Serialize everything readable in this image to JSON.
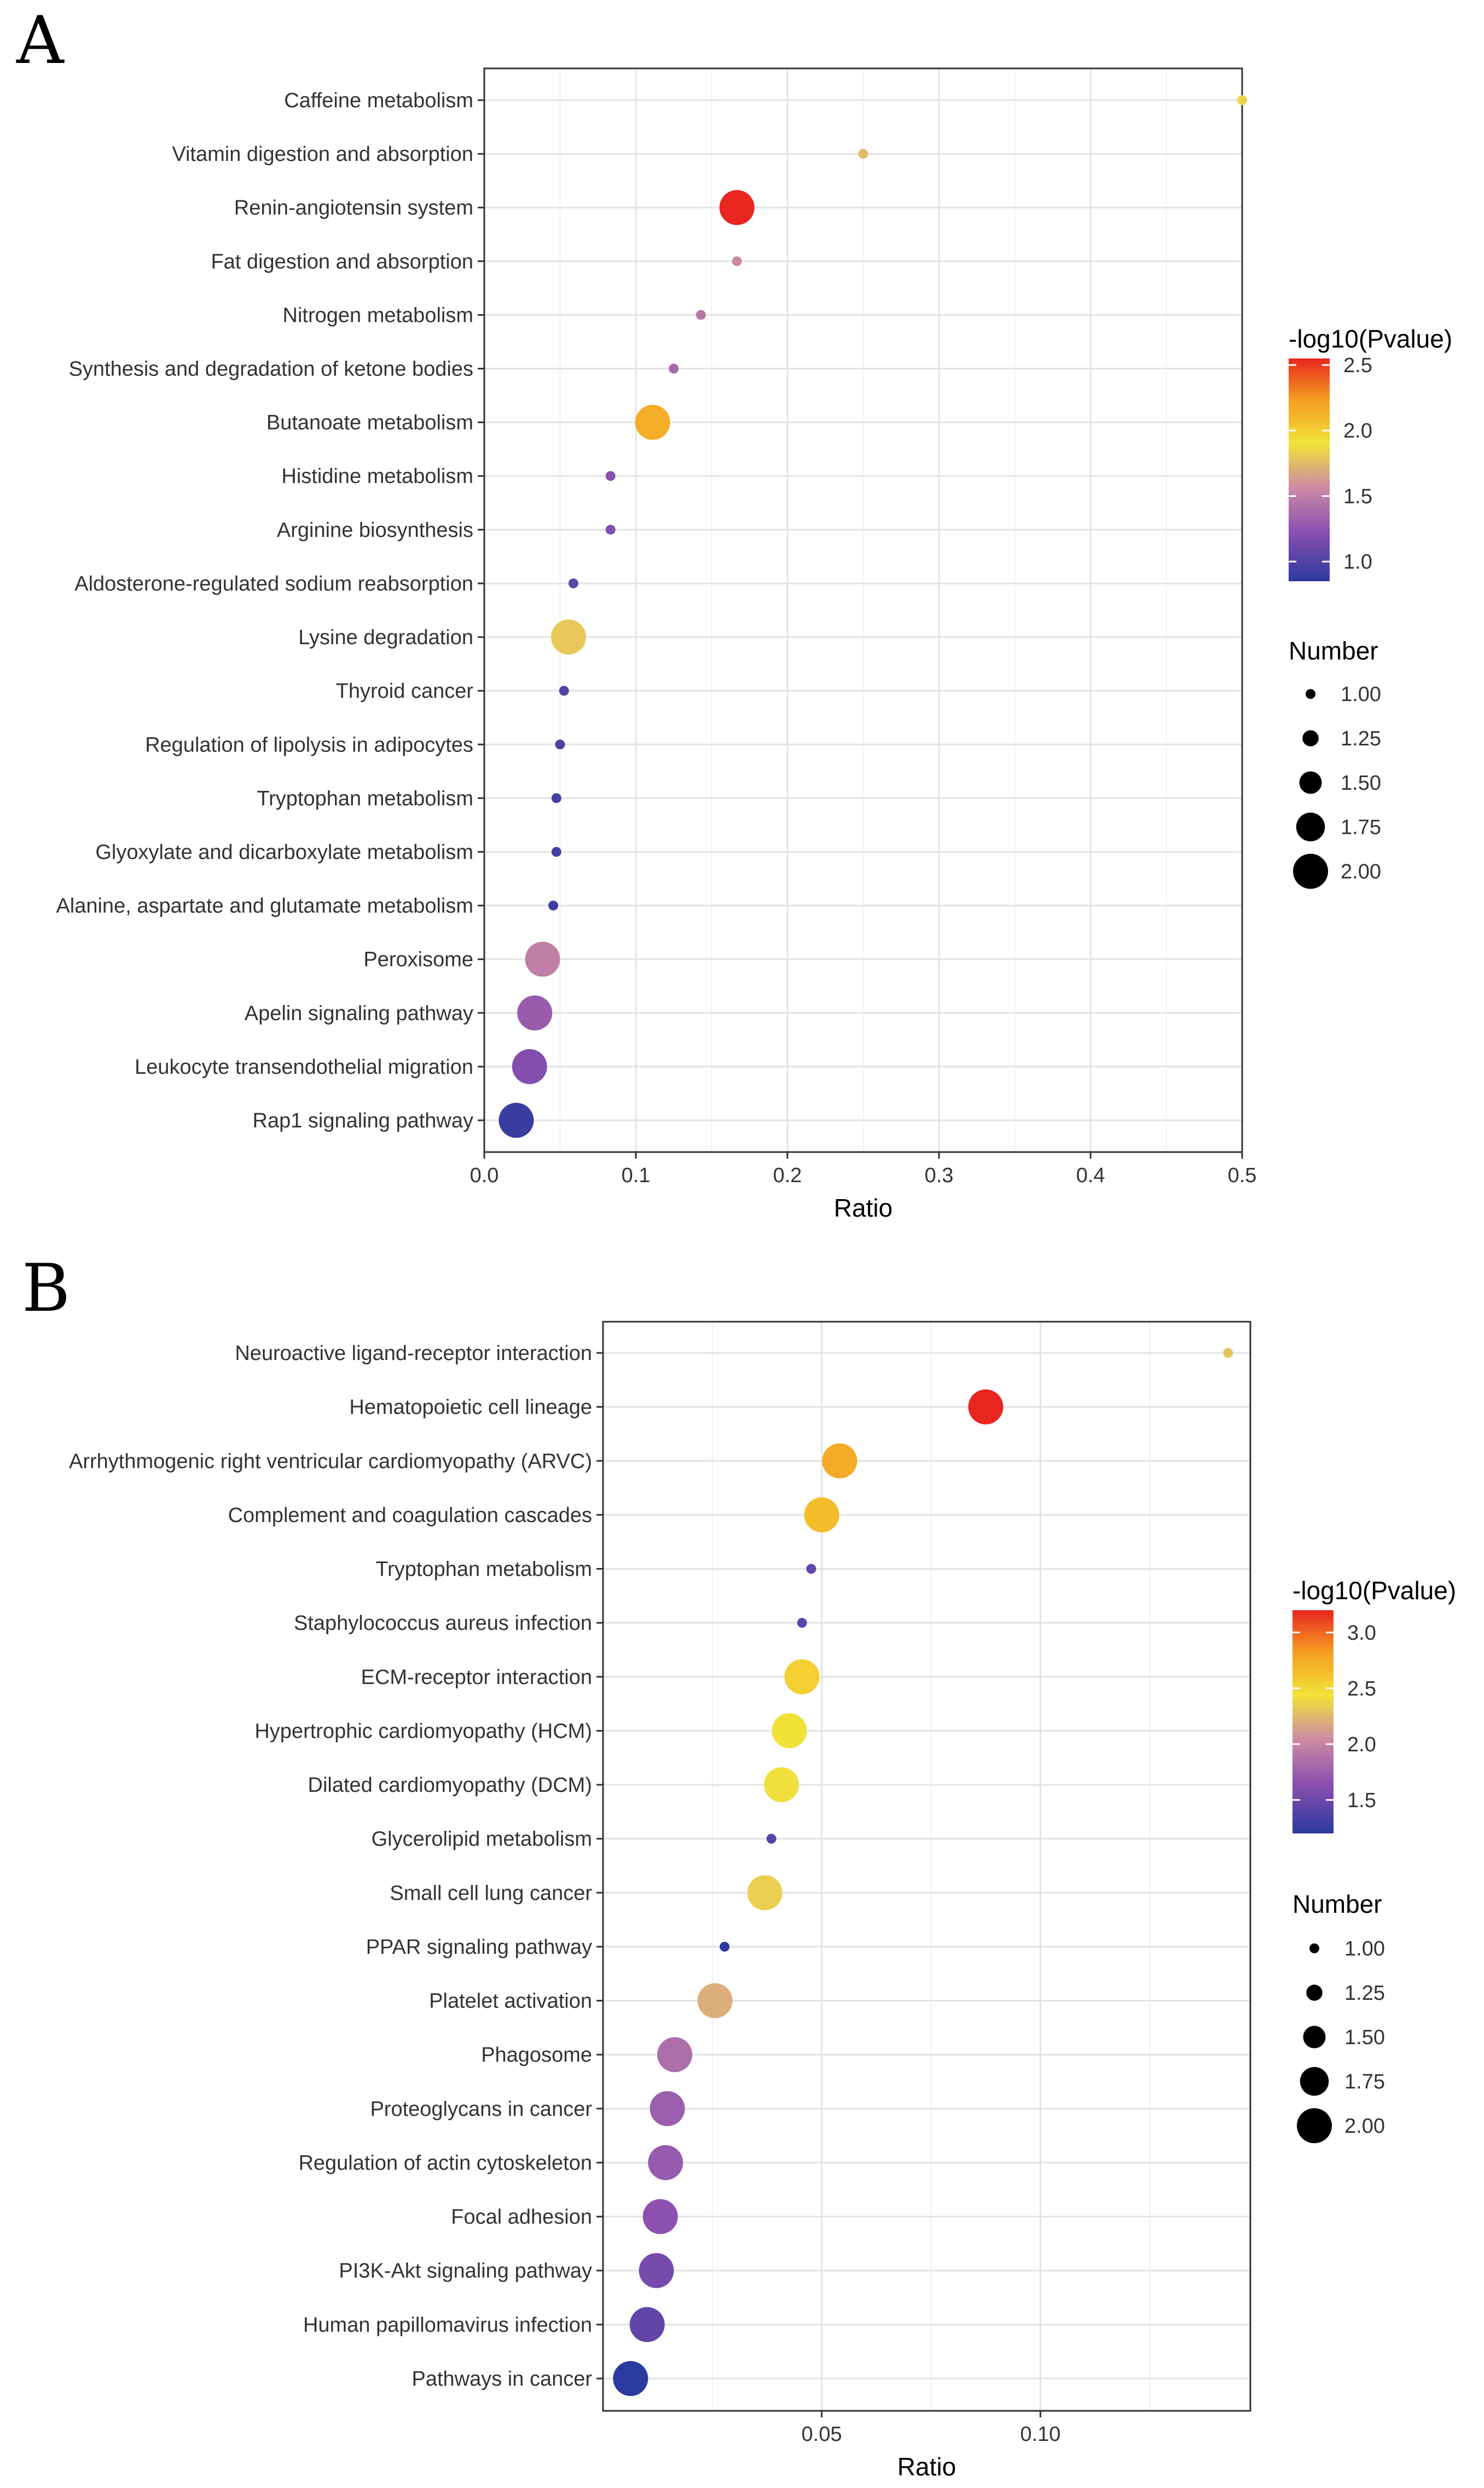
{
  "figure_labels": {
    "a": "A",
    "b": "B"
  },
  "chart_data": [
    {
      "type": "scatter",
      "panel": "A",
      "xlabel": "Ratio",
      "xlim": [
        0.0,
        0.5
      ],
      "xticks": [
        "0.0",
        "0.1",
        "0.2",
        "0.3",
        "0.4",
        "0.5"
      ],
      "color_legend": {
        "title": "-log10(Pvalue)",
        "range": [
          0.85,
          2.55
        ],
        "ticks": [
          "1.0",
          "1.5",
          "2.0",
          "2.5"
        ],
        "tick_values": [
          1.0,
          1.5,
          2.0,
          2.5
        ]
      },
      "size_legend": {
        "title": "Number",
        "labels": [
          "1.00",
          "1.25",
          "1.50",
          "1.75",
          "2.00"
        ],
        "values": [
          1.0,
          1.25,
          1.5,
          1.75,
          2.0
        ]
      },
      "points": [
        {
          "name": "Caffeine metabolism",
          "ratio": 0.5,
          "pvalue_log": 1.85,
          "number": 1
        },
        {
          "name": "Vitamin digestion and absorption",
          "ratio": 0.25,
          "pvalue_log": 1.75,
          "number": 1
        },
        {
          "name": "Renin-angiotensin system",
          "ratio": 0.1667,
          "pvalue_log": 2.55,
          "number": 2
        },
        {
          "name": "Fat digestion and absorption",
          "ratio": 0.1667,
          "pvalue_log": 1.55,
          "number": 1
        },
        {
          "name": "Nitrogen metabolism",
          "ratio": 0.1429,
          "pvalue_log": 1.45,
          "number": 1
        },
        {
          "name": "Synthesis and degradation of ketone bodies",
          "ratio": 0.125,
          "pvalue_log": 1.38,
          "number": 1
        },
        {
          "name": "Butanoate metabolism",
          "ratio": 0.1111,
          "pvalue_log": 2.15,
          "number": 2
        },
        {
          "name": "Histidine metabolism",
          "ratio": 0.0833,
          "pvalue_log": 1.22,
          "number": 1
        },
        {
          "name": "Arginine biosynthesis",
          "ratio": 0.0833,
          "pvalue_log": 1.2,
          "number": 1
        },
        {
          "name": "Aldosterone-regulated sodium reabsorption",
          "ratio": 0.0588,
          "pvalue_log": 1.05,
          "number": 1
        },
        {
          "name": "Lysine degradation",
          "ratio": 0.0556,
          "pvalue_log": 1.8,
          "number": 2
        },
        {
          "name": "Thyroid cancer",
          "ratio": 0.0526,
          "pvalue_log": 1.0,
          "number": 1
        },
        {
          "name": "Regulation of lipolysis in adipocytes",
          "ratio": 0.05,
          "pvalue_log": 0.98,
          "number": 1
        },
        {
          "name": "Tryptophan metabolism",
          "ratio": 0.0476,
          "pvalue_log": 0.96,
          "number": 1
        },
        {
          "name": "Glyoxylate and dicarboxylate metabolism",
          "ratio": 0.0476,
          "pvalue_log": 0.95,
          "number": 1
        },
        {
          "name": "Alanine, aspartate and glutamate metabolism",
          "ratio": 0.0455,
          "pvalue_log": 0.93,
          "number": 1
        },
        {
          "name": "Peroxisome",
          "ratio": 0.0385,
          "pvalue_log": 1.5,
          "number": 2
        },
        {
          "name": "Apelin signaling pathway",
          "ratio": 0.0333,
          "pvalue_log": 1.3,
          "number": 2
        },
        {
          "name": "Leukocyte transendothelial migration",
          "ratio": 0.0299,
          "pvalue_log": 1.2,
          "number": 2
        },
        {
          "name": "Rap1 signaling pathway",
          "ratio": 0.0211,
          "pvalue_log": 0.9,
          "number": 2
        }
      ]
    },
    {
      "type": "scatter",
      "panel": "B",
      "xlabel": "Ratio",
      "xlim": [
        0.0,
        0.148
      ],
      "xticks": [
        "0.05",
        "0.10"
      ],
      "tick_values": [
        0.05,
        0.1
      ],
      "color_legend": {
        "title": "-log10(Pvalue)",
        "range": [
          1.2,
          3.2
        ],
        "ticks": [
          "1.5",
          "2.0",
          "2.5",
          "3.0"
        ],
        "tick_values": [
          1.5,
          2.0,
          2.5,
          3.0
        ]
      },
      "size_legend": {
        "title": "Number",
        "labels": [
          "1.00",
          "1.25",
          "1.50",
          "1.75",
          "2.00"
        ],
        "values": [
          1.0,
          1.25,
          1.5,
          1.75,
          2.0
        ]
      },
      "points": [
        {
          "name": "Neuroactive ligand-receptor interaction",
          "ratio": 0.1429,
          "pvalue_log": 2.3,
          "number": 1
        },
        {
          "name": "Hematopoietic cell lineage",
          "ratio": 0.0875,
          "pvalue_log": 3.2,
          "number": 2
        },
        {
          "name": "Arrhythmogenic right ventricular cardiomyopathy (ARVC)",
          "ratio": 0.0541,
          "pvalue_log": 2.75,
          "number": 2
        },
        {
          "name": "Complement and coagulation cascades",
          "ratio": 0.05,
          "pvalue_log": 2.65,
          "number": 2
        },
        {
          "name": "Tryptophan metabolism",
          "ratio": 0.0476,
          "pvalue_log": 1.45,
          "number": 1
        },
        {
          "name": "Staphylococcus aureus infection",
          "ratio": 0.0455,
          "pvalue_log": 1.42,
          "number": 1
        },
        {
          "name": "ECM-receptor interaction",
          "ratio": 0.0455,
          "pvalue_log": 2.55,
          "number": 2
        },
        {
          "name": "Hypertrophic cardiomyopathy (HCM)",
          "ratio": 0.0426,
          "pvalue_log": 2.45,
          "number": 2
        },
        {
          "name": "Dilated cardiomyopathy (DCM)",
          "ratio": 0.0408,
          "pvalue_log": 2.42,
          "number": 2
        },
        {
          "name": "Glycerolipid metabolism",
          "ratio": 0.0385,
          "pvalue_log": 1.4,
          "number": 1
        },
        {
          "name": "Small cell lung cancer",
          "ratio": 0.037,
          "pvalue_log": 2.35,
          "number": 2
        },
        {
          "name": "PPAR signaling pathway",
          "ratio": 0.0278,
          "pvalue_log": 1.2,
          "number": 1
        },
        {
          "name": "Platelet activation",
          "ratio": 0.0256,
          "pvalue_log": 2.2,
          "number": 2
        },
        {
          "name": "Phagosome",
          "ratio": 0.0164,
          "pvalue_log": 1.85,
          "number": 2
        },
        {
          "name": "Proteoglycans in cancer",
          "ratio": 0.0147,
          "pvalue_log": 1.75,
          "number": 2
        },
        {
          "name": "Regulation of actin cytoskeleton",
          "ratio": 0.0143,
          "pvalue_log": 1.72,
          "number": 2
        },
        {
          "name": "Focal adhesion",
          "ratio": 0.0131,
          "pvalue_log": 1.65,
          "number": 2
        },
        {
          "name": "PI3K-Akt signaling pathway",
          "ratio": 0.0122,
          "pvalue_log": 1.55,
          "number": 2
        },
        {
          "name": "Human papillomavirus infection",
          "ratio": 0.0101,
          "pvalue_log": 1.45,
          "number": 2
        },
        {
          "name": "Pathways in cancer",
          "ratio": 0.0063,
          "pvalue_log": 1.2,
          "number": 2
        }
      ]
    }
  ]
}
